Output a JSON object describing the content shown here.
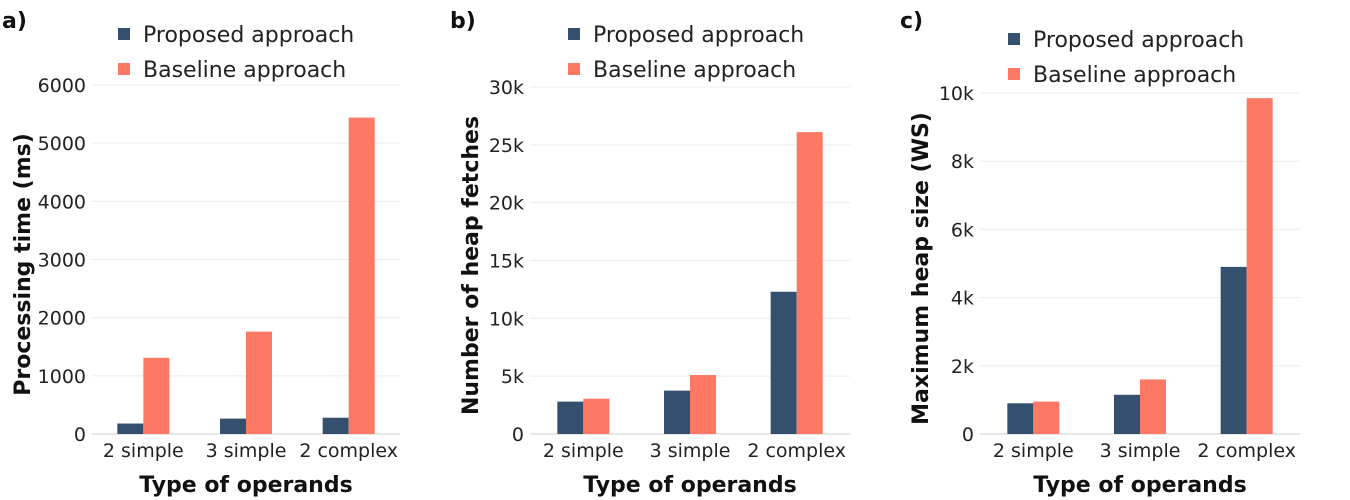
{
  "colors": {
    "proposed": "#34506e",
    "baseline": "#fd7966"
  },
  "chart_data": [
    {
      "type": "bar",
      "panel": "a)",
      "categories": [
        "2 simple",
        "3 simple",
        "2 complex"
      ],
      "series": [
        {
          "name": "Proposed approach",
          "values": [
            180,
            265,
            280
          ]
        },
        {
          "name": "Baseline approach",
          "values": [
            1310,
            1760,
            5440
          ]
        }
      ],
      "xlabel": "Type of operands",
      "ylabel": "Processing time (ms)",
      "ylim": [
        0,
        6000
      ],
      "yticks": [
        0,
        1000,
        2000,
        3000,
        4000,
        5000,
        6000
      ],
      "yticklabels": [
        "0",
        "1000",
        "2000",
        "3000",
        "4000",
        "5000",
        "6000"
      ],
      "grid": true,
      "legend": "top"
    },
    {
      "type": "bar",
      "panel": "b)",
      "categories": [
        "2 simple",
        "3 simple",
        "2 complex"
      ],
      "series": [
        {
          "name": "Proposed approach",
          "values": [
            2800,
            3750,
            12300
          ]
        },
        {
          "name": "Baseline approach",
          "values": [
            3050,
            5100,
            26100
          ]
        }
      ],
      "xlabel": "Type of operands",
      "ylabel": "Number of heap fetches",
      "ylim": [
        0,
        30000
      ],
      "yticks": [
        0,
        5000,
        10000,
        15000,
        20000,
        25000,
        30000
      ],
      "yticklabels": [
        "0",
        "5k",
        "10k",
        "15k",
        "20k",
        "25k",
        "30k"
      ],
      "grid": true,
      "legend": "top"
    },
    {
      "type": "bar",
      "panel": "c)",
      "categories": [
        "2 simple",
        "3 simple",
        "2 complex"
      ],
      "series": [
        {
          "name": "Proposed approach",
          "values": [
            900,
            1150,
            4900
          ]
        },
        {
          "name": "Baseline approach",
          "values": [
            950,
            1600,
            9850
          ]
        }
      ],
      "xlabel": "Type of operands",
      "ylabel": "Maximum heap size (WS)",
      "ylim": [
        0,
        10000
      ],
      "yticks": [
        0,
        2000,
        4000,
        6000,
        8000,
        10000
      ],
      "yticklabels": [
        "0",
        "2k",
        "4k",
        "6k",
        "8k",
        "10k"
      ],
      "grid": true,
      "legend": "top"
    }
  ]
}
